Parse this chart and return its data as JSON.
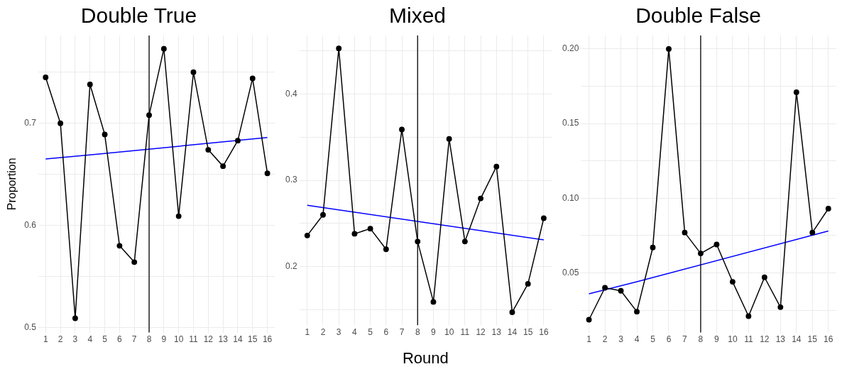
{
  "chart_data": [
    {
      "type": "line",
      "title": "Double True",
      "ylabel": "Proportion",
      "x": [
        1,
        2,
        3,
        4,
        5,
        6,
        7,
        8,
        9,
        10,
        11,
        12,
        13,
        14,
        15,
        16
      ],
      "xlim": [
        0.5,
        16.5
      ],
      "xticks": [
        1,
        2,
        3,
        4,
        5,
        6,
        7,
        8,
        9,
        10,
        11,
        12,
        13,
        14,
        15,
        16
      ],
      "ylim": [
        0.495,
        0.786
      ],
      "yticks": [
        0.5,
        {
          "value": 0.55,
          "label": null
        },
        0.6,
        {
          "value": 0.65,
          "label": null
        },
        0.7,
        {
          "value": 0.75,
          "label": null
        }
      ],
      "grid": true,
      "legend": false,
      "marker": "circle",
      "series": [
        {
          "color": "#000000",
          "values": [
            0.745,
            0.7,
            0.509,
            0.738,
            0.689,
            0.58,
            0.564,
            0.708,
            0.773,
            0.609,
            0.75,
            0.674,
            0.658,
            0.683,
            0.744,
            0.651
          ]
        },
        {
          "type": "line",
          "color": "#0000ff",
          "marker": "none",
          "x": [
            1,
            4,
            16
          ],
          "values": [
            0.665,
            0.669,
            0.686
          ]
        }
      ],
      "ref_lines": [
        {
          "axis": "x",
          "value": 8,
          "color": "#000000"
        }
      ]
    },
    {
      "type": "line",
      "title": "Mixed",
      "xlabel": "Round",
      "x": [
        1,
        2,
        3,
        4,
        5,
        6,
        7,
        8,
        9,
        10,
        11,
        12,
        13,
        14,
        15,
        16
      ],
      "xlim": [
        0.5,
        16.5
      ],
      "xticks": [
        1,
        2,
        3,
        4,
        5,
        6,
        7,
        8,
        9,
        10,
        11,
        12,
        13,
        14,
        15,
        16
      ],
      "ylim": [
        0.132,
        0.468
      ],
      "yticks": [
        {
          "value": 0.15,
          "label": null
        },
        0.2,
        {
          "value": 0.25,
          "label": null
        },
        0.3,
        {
          "value": 0.35,
          "label": null
        },
        0.4,
        {
          "value": 0.45,
          "label": null
        }
      ],
      "grid": true,
      "legend": false,
      "marker": "circle",
      "series": [
        {
          "color": "#000000",
          "values": [
            0.236,
            0.26,
            0.453,
            0.238,
            0.244,
            0.22,
            0.359,
            0.229,
            0.159,
            0.348,
            0.229,
            0.279,
            0.316,
            0.147,
            0.18,
            0.256
          ]
        },
        {
          "type": "line",
          "color": "#0000ff",
          "marker": "none",
          "x": [
            1,
            4,
            16
          ],
          "values": [
            0.271,
            0.263,
            0.231
          ]
        }
      ],
      "ref_lines": [
        {
          "axis": "x",
          "value": 8,
          "color": "#000000"
        }
      ]
    },
    {
      "type": "line",
      "title": "Double False",
      "x": [
        1,
        2,
        3,
        4,
        5,
        6,
        7,
        8,
        9,
        10,
        11,
        12,
        13,
        14,
        15,
        16
      ],
      "xlim": [
        0.5,
        16.5
      ],
      "xticks": [
        1,
        2,
        3,
        4,
        5,
        6,
        7,
        8,
        9,
        10,
        11,
        12,
        13,
        14,
        15,
        16
      ],
      "ylim": [
        0.01,
        0.209
      ],
      "yticks": [
        {
          "value": 0.025,
          "label": null
        },
        {
          "value": 0.05,
          "label": "0.05"
        },
        {
          "value": 0.075,
          "label": null
        },
        {
          "value": 0.1,
          "label": "0.10"
        },
        {
          "value": 0.125,
          "label": null
        },
        {
          "value": 0.15,
          "label": "0.15"
        },
        {
          "value": 0.175,
          "label": null
        },
        {
          "value": 0.2,
          "label": "0.20"
        }
      ],
      "grid": true,
      "legend": false,
      "marker": "circle",
      "series": [
        {
          "color": "#000000",
          "values": [
            0.0186,
            0.04,
            0.038,
            0.024,
            0.067,
            0.2,
            0.077,
            0.063,
            0.069,
            0.044,
            0.021,
            0.047,
            0.027,
            0.171,
            0.077,
            0.093
          ]
        },
        {
          "type": "line",
          "color": "#0000ff",
          "marker": "none",
          "x": [
            1,
            4,
            16
          ],
          "values": [
            0.036,
            0.044,
            0.078
          ]
        }
      ],
      "ref_lines": [
        {
          "axis": "x",
          "value": 8,
          "color": "#000000"
        }
      ]
    }
  ]
}
